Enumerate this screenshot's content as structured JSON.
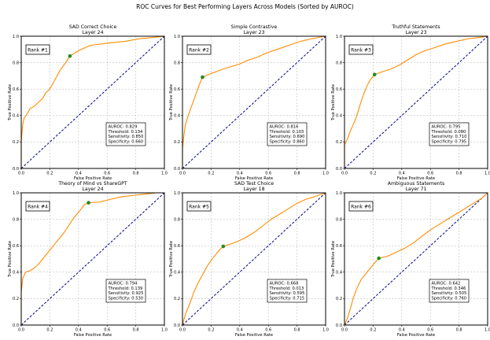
{
  "figure": {
    "title": "ROC Curves for Best Performing Layers Across Models (Sorted by AUROC)"
  },
  "style": {
    "curve_color": "#ff8c00",
    "diagonal_color": "#00008b",
    "point_color": "#1f8a1f",
    "grid_color": "#b0b0b0"
  },
  "chart_data": [
    {
      "type": "line",
      "title": "SAD Correct Choice",
      "subtitle": "Layer 24",
      "xlabel": "False Positive Rate",
      "ylabel": "True Positive Rate",
      "xlim": [
        0,
        1
      ],
      "ylim": [
        0,
        1
      ],
      "xticks": [
        "0.0",
        "0.2",
        "0.4",
        "0.6",
        "0.8",
        "1.0"
      ],
      "yticks": [
        "0.0",
        "0.2",
        "0.4",
        "0.6",
        "0.8",
        "1.0"
      ],
      "grid": true,
      "rank_label": "Rank #1",
      "stats": [
        "AUROC: 0.829",
        "Threshold: 0.134",
        "Sensitivity: 0.850",
        "Specificity: 0.660"
      ],
      "optimal_point": {
        "x": 0.34,
        "y": 0.85
      },
      "series": [
        {
          "values": [
            [
              0,
              0
            ],
            [
              0,
              0.2
            ],
            [
              0.01,
              0.33
            ],
            [
              0.02,
              0.38
            ],
            [
              0.04,
              0.41
            ],
            [
              0.06,
              0.45
            ],
            [
              0.09,
              0.47
            ],
            [
              0.12,
              0.5
            ],
            [
              0.15,
              0.53
            ],
            [
              0.17,
              0.57
            ],
            [
              0.19,
              0.59
            ],
            [
              0.21,
              0.62
            ],
            [
              0.23,
              0.66
            ],
            [
              0.25,
              0.7
            ],
            [
              0.27,
              0.74
            ],
            [
              0.29,
              0.77
            ],
            [
              0.31,
              0.8
            ],
            [
              0.34,
              0.85
            ],
            [
              0.37,
              0.87
            ],
            [
              0.4,
              0.89
            ],
            [
              0.44,
              0.91
            ],
            [
              0.48,
              0.93
            ],
            [
              0.55,
              0.94
            ],
            [
              0.62,
              0.95
            ],
            [
              0.72,
              0.96
            ],
            [
              0.82,
              0.98
            ],
            [
              0.92,
              0.99
            ],
            [
              1,
              1
            ]
          ]
        }
      ]
    },
    {
      "type": "line",
      "title": "Simple Contrastive",
      "subtitle": "Layer 23",
      "xlabel": "False Positive Rate",
      "ylabel": "True Positive Rate",
      "xlim": [
        0,
        1
      ],
      "ylim": [
        0,
        1
      ],
      "xticks": [
        "0.0",
        "0.2",
        "0.4",
        "0.6",
        "0.8",
        "1.0"
      ],
      "yticks": [
        "0.0",
        "0.2",
        "0.4",
        "0.6",
        "0.8",
        "1.0"
      ],
      "grid": true,
      "rank_label": "Rank #2",
      "stats": [
        "AUROC: 0.816",
        "Threshold: 0.103",
        "Sensitivity: 0.690",
        "Specificity: 0.860"
      ],
      "optimal_point": {
        "x": 0.14,
        "y": 0.69
      },
      "series": [
        {
          "values": [
            [
              0,
              0
            ],
            [
              0,
              0.15
            ],
            [
              0.01,
              0.25
            ],
            [
              0.02,
              0.33
            ],
            [
              0.04,
              0.4
            ],
            [
              0.06,
              0.46
            ],
            [
              0.08,
              0.52
            ],
            [
              0.1,
              0.58
            ],
            [
              0.12,
              0.64
            ],
            [
              0.14,
              0.69
            ],
            [
              0.18,
              0.71
            ],
            [
              0.23,
              0.73
            ],
            [
              0.28,
              0.75
            ],
            [
              0.34,
              0.77
            ],
            [
              0.4,
              0.79
            ],
            [
              0.46,
              0.82
            ],
            [
              0.52,
              0.84
            ],
            [
              0.58,
              0.87
            ],
            [
              0.66,
              0.9
            ],
            [
              0.74,
              0.93
            ],
            [
              0.82,
              0.96
            ],
            [
              0.9,
              0.98
            ],
            [
              1,
              1
            ]
          ]
        }
      ]
    },
    {
      "type": "line",
      "title": "Truthful Statements",
      "subtitle": "Layer 23",
      "xlabel": "False Positive Rate",
      "ylabel": "True Positive Rate",
      "xlim": [
        0,
        1
      ],
      "ylim": [
        0,
        1
      ],
      "xticks": [
        "0.0",
        "0.2",
        "0.4",
        "0.6",
        "0.8",
        "1.0"
      ],
      "yticks": [
        "0.0",
        "0.2",
        "0.4",
        "0.6",
        "0.8",
        "1.0"
      ],
      "grid": true,
      "rank_label": "Rank #3",
      "stats": [
        "AUROC: 0.795",
        "Threshold: 0.080",
        "Sensitivity: 0.710",
        "Specificity: 0.795"
      ],
      "optimal_point": {
        "x": 0.21,
        "y": 0.71
      },
      "series": [
        {
          "values": [
            [
              0,
              0
            ],
            [
              0,
              0.18
            ],
            [
              0.02,
              0.22
            ],
            [
              0.04,
              0.28
            ],
            [
              0.06,
              0.33
            ],
            [
              0.08,
              0.38
            ],
            [
              0.1,
              0.45
            ],
            [
              0.12,
              0.52
            ],
            [
              0.14,
              0.58
            ],
            [
              0.16,
              0.63
            ],
            [
              0.18,
              0.67
            ],
            [
              0.21,
              0.71
            ],
            [
              0.26,
              0.73
            ],
            [
              0.32,
              0.75
            ],
            [
              0.38,
              0.78
            ],
            [
              0.44,
              0.82
            ],
            [
              0.5,
              0.86
            ],
            [
              0.56,
              0.89
            ],
            [
              0.62,
              0.91
            ],
            [
              0.7,
              0.94
            ],
            [
              0.78,
              0.96
            ],
            [
              0.86,
              0.98
            ],
            [
              0.94,
              0.99
            ],
            [
              1,
              1
            ]
          ]
        }
      ]
    },
    {
      "type": "line",
      "title": "Theory of Mind vs ShareGPT",
      "subtitle": "Layer 24",
      "xlabel": "False Positive Rate",
      "ylabel": "True Positive Rate",
      "xlim": [
        0,
        1
      ],
      "ylim": [
        0,
        1
      ],
      "xticks": [
        "0.0",
        "0.2",
        "0.4",
        "0.6",
        "0.8",
        "1.0"
      ],
      "yticks": [
        "0.0",
        "0.2",
        "0.4",
        "0.6",
        "0.8",
        "1.0"
      ],
      "grid": true,
      "rank_label": "Rank #4",
      "stats": [
        "AUROC: 0.794",
        "Threshold: 0.139",
        "Sensitivity: 0.925",
        "Specificity: 0.530"
      ],
      "optimal_point": {
        "x": 0.47,
        "y": 0.925
      },
      "series": [
        {
          "values": [
            [
              0,
              0
            ],
            [
              0,
              0.25
            ],
            [
              0.01,
              0.35
            ],
            [
              0.03,
              0.4
            ],
            [
              0.06,
              0.41
            ],
            [
              0.09,
              0.43
            ],
            [
              0.12,
              0.46
            ],
            [
              0.15,
              0.5
            ],
            [
              0.18,
              0.54
            ],
            [
              0.21,
              0.58
            ],
            [
              0.24,
              0.62
            ],
            [
              0.27,
              0.66
            ],
            [
              0.3,
              0.7
            ],
            [
              0.33,
              0.75
            ],
            [
              0.36,
              0.8
            ],
            [
              0.39,
              0.84
            ],
            [
              0.42,
              0.88
            ],
            [
              0.44,
              0.91
            ],
            [
              0.47,
              0.925
            ],
            [
              0.55,
              0.93
            ],
            [
              0.62,
              0.95
            ],
            [
              0.7,
              0.97
            ],
            [
              0.78,
              0.98
            ],
            [
              0.86,
              0.99
            ],
            [
              0.94,
              1.0
            ],
            [
              1,
              1
            ]
          ]
        }
      ]
    },
    {
      "type": "line",
      "title": "SAD Test Choice",
      "subtitle": "Layer 18",
      "xlabel": "False Positive Rate",
      "ylabel": "True Positive Rate",
      "xlim": [
        0,
        1
      ],
      "ylim": [
        0,
        1
      ],
      "xticks": [
        "0.0",
        "0.2",
        "0.4",
        "0.6",
        "0.8",
        "1.0"
      ],
      "yticks": [
        "0.0",
        "0.2",
        "0.4",
        "0.6",
        "0.8",
        "1.0"
      ],
      "grid": true,
      "rank_label": "Rank #5",
      "stats": [
        "AUROC: 0.668",
        "Threshold: 0.013",
        "Sensitivity: 0.595",
        "Specificity: 0.715"
      ],
      "optimal_point": {
        "x": 0.285,
        "y": 0.595
      },
      "series": [
        {
          "values": [
            [
              0,
              0
            ],
            [
              0.02,
              0.08
            ],
            [
              0.05,
              0.16
            ],
            [
              0.08,
              0.25
            ],
            [
              0.11,
              0.32
            ],
            [
              0.14,
              0.38
            ],
            [
              0.17,
              0.44
            ],
            [
              0.2,
              0.49
            ],
            [
              0.23,
              0.53
            ],
            [
              0.26,
              0.57
            ],
            [
              0.285,
              0.595
            ],
            [
              0.33,
              0.61
            ],
            [
              0.38,
              0.63
            ],
            [
              0.44,
              0.66
            ],
            [
              0.5,
              0.7
            ],
            [
              0.56,
              0.75
            ],
            [
              0.62,
              0.8
            ],
            [
              0.68,
              0.84
            ],
            [
              0.74,
              0.88
            ],
            [
              0.8,
              0.92
            ],
            [
              0.86,
              0.95
            ],
            [
              0.92,
              0.97
            ],
            [
              1,
              1
            ]
          ]
        }
      ]
    },
    {
      "type": "line",
      "title": "Ambiguous Statements",
      "subtitle": "Layer 71",
      "xlabel": "False Positive Rate",
      "ylabel": "True Positive Rate",
      "xlim": [
        0,
        1
      ],
      "ylim": [
        0,
        1
      ],
      "xticks": [
        "0.0",
        "0.2",
        "0.4",
        "0.6",
        "0.8",
        "1.0"
      ],
      "yticks": [
        "0.0",
        "0.2",
        "0.4",
        "0.6",
        "0.8",
        "1.0"
      ],
      "grid": true,
      "rank_label": "Rank #6",
      "stats": [
        "AUROC: 0.642",
        "Threshold: 0.346",
        "Sensitivity: 0.505",
        "Specificity: 0.760"
      ],
      "optimal_point": {
        "x": 0.24,
        "y": 0.505
      },
      "series": [
        {
          "values": [
            [
              0,
              0
            ],
            [
              0.02,
              0.05
            ],
            [
              0.04,
              0.12
            ],
            [
              0.06,
              0.2
            ],
            [
              0.08,
              0.26
            ],
            [
              0.1,
              0.31
            ],
            [
              0.12,
              0.35
            ],
            [
              0.15,
              0.39
            ],
            [
              0.18,
              0.43
            ],
            [
              0.21,
              0.47
            ],
            [
              0.24,
              0.505
            ],
            [
              0.3,
              0.52
            ],
            [
              0.36,
              0.55
            ],
            [
              0.42,
              0.58
            ],
            [
              0.48,
              0.62
            ],
            [
              0.54,
              0.67
            ],
            [
              0.6,
              0.72
            ],
            [
              0.66,
              0.76
            ],
            [
              0.72,
              0.8
            ],
            [
              0.78,
              0.84
            ],
            [
              0.84,
              0.88
            ],
            [
              0.9,
              0.92
            ],
            [
              0.96,
              0.96
            ],
            [
              1,
              1
            ]
          ]
        }
      ]
    }
  ]
}
